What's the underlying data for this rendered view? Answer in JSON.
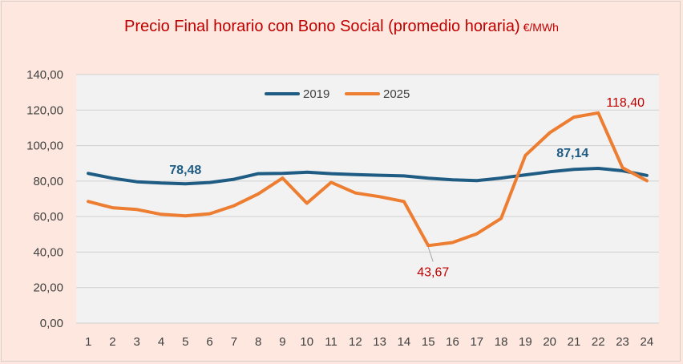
{
  "chart_data": {
    "type": "line",
    "title": "Precio Final horario con Bono Social (promedio horaria)",
    "title_unit": "€/MWh",
    "xlabel": "",
    "ylabel": "",
    "categories": [
      "1",
      "2",
      "3",
      "4",
      "5",
      "6",
      "7",
      "8",
      "9",
      "10",
      "11",
      "12",
      "13",
      "14",
      "15",
      "16",
      "17",
      "18",
      "19",
      "20",
      "21",
      "22",
      "23",
      "24"
    ],
    "ylim": [
      0,
      140
    ],
    "yticks": [
      0,
      20,
      40,
      60,
      80,
      100,
      120,
      140
    ],
    "ytick_labels": [
      "0,00",
      "20,00",
      "40,00",
      "60,00",
      "80,00",
      "100,00",
      "120,00",
      "140,00"
    ],
    "grid": true,
    "legend_position": "top-center",
    "series": [
      {
        "name": "2019",
        "color": "#1f5c84",
        "values": [
          84.3,
          81.6,
          79.6,
          78.9,
          78.48,
          79.2,
          81.0,
          84.2,
          84.3,
          85.0,
          84.2,
          83.7,
          83.3,
          82.9,
          81.6,
          80.7,
          80.3,
          81.7,
          83.5,
          85.2,
          86.6,
          87.14,
          85.8,
          83.2
        ]
      },
      {
        "name": "2025",
        "color": "#ed7d31",
        "values": [
          68.5,
          65.0,
          64.0,
          61.3,
          60.4,
          61.6,
          66.1,
          72.8,
          81.7,
          67.5,
          79.3,
          73.3,
          71.2,
          68.5,
          43.67,
          45.4,
          50.3,
          59.0,
          94.5,
          107.2,
          116.0,
          118.4,
          87.5,
          80.2
        ]
      }
    ],
    "annotations": [
      {
        "series": "2019",
        "index": 4,
        "text": "78,48",
        "color": "#1f5c84"
      },
      {
        "series": "2019",
        "index": 21,
        "text": "87,14",
        "color": "#1f5c84"
      },
      {
        "series": "2025",
        "index": 14,
        "text": "43,67",
        "color": "#c00000"
      },
      {
        "series": "2025",
        "index": 21,
        "text": "118,40",
        "color": "#c00000"
      }
    ]
  }
}
